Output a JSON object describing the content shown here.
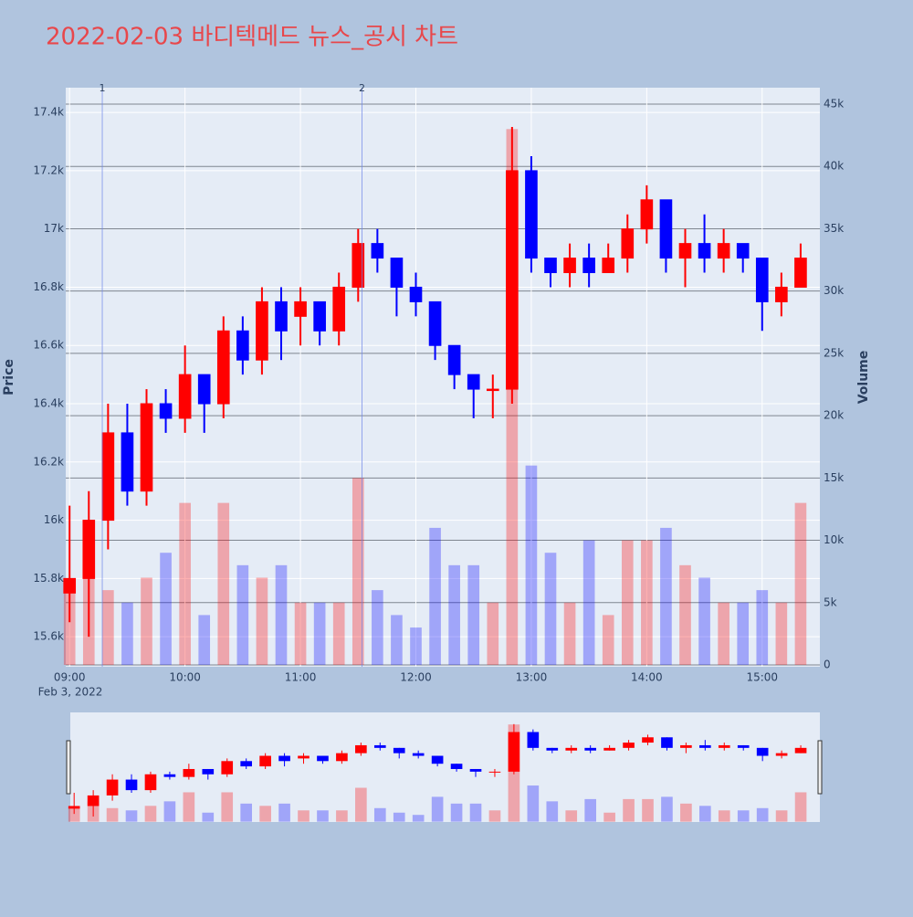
{
  "chart_data": {
    "type": "candlestick",
    "title": "2022-02-03 바디텍메드 뉴스_공시 차트",
    "x": [
      "09:00",
      "09:10",
      "09:20",
      "09:30",
      "09:40",
      "09:50",
      "10:00",
      "10:10",
      "10:20",
      "10:30",
      "10:40",
      "10:50",
      "11:00",
      "11:10",
      "11:20",
      "11:30",
      "11:40",
      "11:50",
      "12:00",
      "12:10",
      "12:20",
      "12:30",
      "12:40",
      "12:50",
      "13:00",
      "13:10",
      "13:20",
      "13:30",
      "13:40",
      "13:50",
      "14:00",
      "14:10",
      "14:20",
      "14:30",
      "14:40",
      "14:50",
      "15:00",
      "15:10",
      "15:20"
    ],
    "open": [
      15750,
      15800,
      16000,
      16300,
      16100,
      16400,
      16350,
      16500,
      16400,
      16650,
      16550,
      16750,
      16700,
      16750,
      16650,
      16800,
      16950,
      16900,
      16800,
      16750,
      16600,
      16500,
      16450,
      16450,
      17200,
      16900,
      16850,
      16900,
      16850,
      16900,
      17000,
      17100,
      16900,
      16950,
      16900,
      16950,
      16900,
      16750,
      16800
    ],
    "high": [
      16050,
      16100,
      16400,
      16400,
      16450,
      16450,
      16600,
      16500,
      16700,
      16700,
      16800,
      16800,
      16800,
      16750,
      16850,
      17000,
      17000,
      16900,
      16850,
      16750,
      16600,
      16500,
      16500,
      17350,
      17250,
      16900,
      16950,
      16950,
      16950,
      17050,
      17150,
      17100,
      17000,
      17050,
      17000,
      16950,
      16900,
      16850,
      16950
    ],
    "low": [
      15650,
      15600,
      15900,
      16050,
      16050,
      16300,
      16300,
      16300,
      16350,
      16500,
      16500,
      16550,
      16600,
      16600,
      16600,
      16750,
      16850,
      16700,
      16700,
      16550,
      16450,
      16350,
      16350,
      16400,
      16850,
      16800,
      16800,
      16800,
      16850,
      16850,
      16950,
      16850,
      16800,
      16850,
      16850,
      16850,
      16650,
      16700,
      16800
    ],
    "close": [
      15800,
      16000,
      16300,
      16100,
      16400,
      16350,
      16500,
      16400,
      16650,
      16550,
      16750,
      16650,
      16750,
      16650,
      16800,
      16950,
      16900,
      16800,
      16750,
      16600,
      16500,
      16450,
      16450,
      17200,
      16900,
      16850,
      16900,
      16850,
      16900,
      17000,
      17100,
      16900,
      16950,
      16900,
      16950,
      16900,
      16750,
      16800,
      16900
    ],
    "volume": [
      6000,
      9000,
      6000,
      5000,
      7000,
      9000,
      13000,
      4000,
      13000,
      8000,
      7000,
      8000,
      5000,
      5000,
      5000,
      15000,
      6000,
      4000,
      3000,
      11000,
      8000,
      8000,
      5000,
      43000,
      16000,
      9000,
      5000,
      10000,
      4000,
      10000,
      10000,
      11000,
      8000,
      7000,
      5000,
      5000,
      6000,
      5000,
      13000
    ],
    "colors": {
      "up": "#ff0000",
      "down": "#0000ff"
    },
    "ylim": [
      15497,
      17485
    ],
    "yticks": [
      {
        "value": 15600,
        "label": "15.6k"
      },
      {
        "value": 15800,
        "label": "15.8k"
      },
      {
        "value": 16000,
        "label": "16k"
      },
      {
        "value": 16200,
        "label": "16.2k"
      },
      {
        "value": 16400,
        "label": "16.4k"
      },
      {
        "value": 16600,
        "label": "16.6k"
      },
      {
        "value": 16800,
        "label": "16.8k"
      },
      {
        "value": 17000,
        "label": "17k"
      },
      {
        "value": 17200,
        "label": "17.2k"
      },
      {
        "value": 17400,
        "label": "17.4k"
      }
    ],
    "y2lim": [
      -147,
      46320
    ],
    "y2ticks": [
      0,
      {
        "value": 5000,
        "label": "5k"
      },
      {
        "value": 10000,
        "label": "10k"
      },
      {
        "value": 15000,
        "label": "15k"
      },
      {
        "value": 20000,
        "label": "20k"
      },
      {
        "value": 25000,
        "label": "25k"
      },
      {
        "value": 30000,
        "label": "30k"
      },
      {
        "value": 35000,
        "label": "35k"
      },
      {
        "value": 40000,
        "label": "40k"
      },
      {
        "value": 45000,
        "label": "45k"
      }
    ],
    "xlim": [
      "08:58",
      "15:30"
    ],
    "xticks": [
      "09:00",
      "10:00",
      "11:00",
      "12:00",
      "13:00",
      "14:00",
      "15:00"
    ],
    "x_date_label": "Feb 3, 2022",
    "y_label": "Price",
    "y2_label": "Volume",
    "annotations": [
      {
        "x": "09:17",
        "text": "1"
      },
      {
        "x": "11:32",
        "text": "2"
      }
    ],
    "grid": true,
    "range_slider": true
  }
}
